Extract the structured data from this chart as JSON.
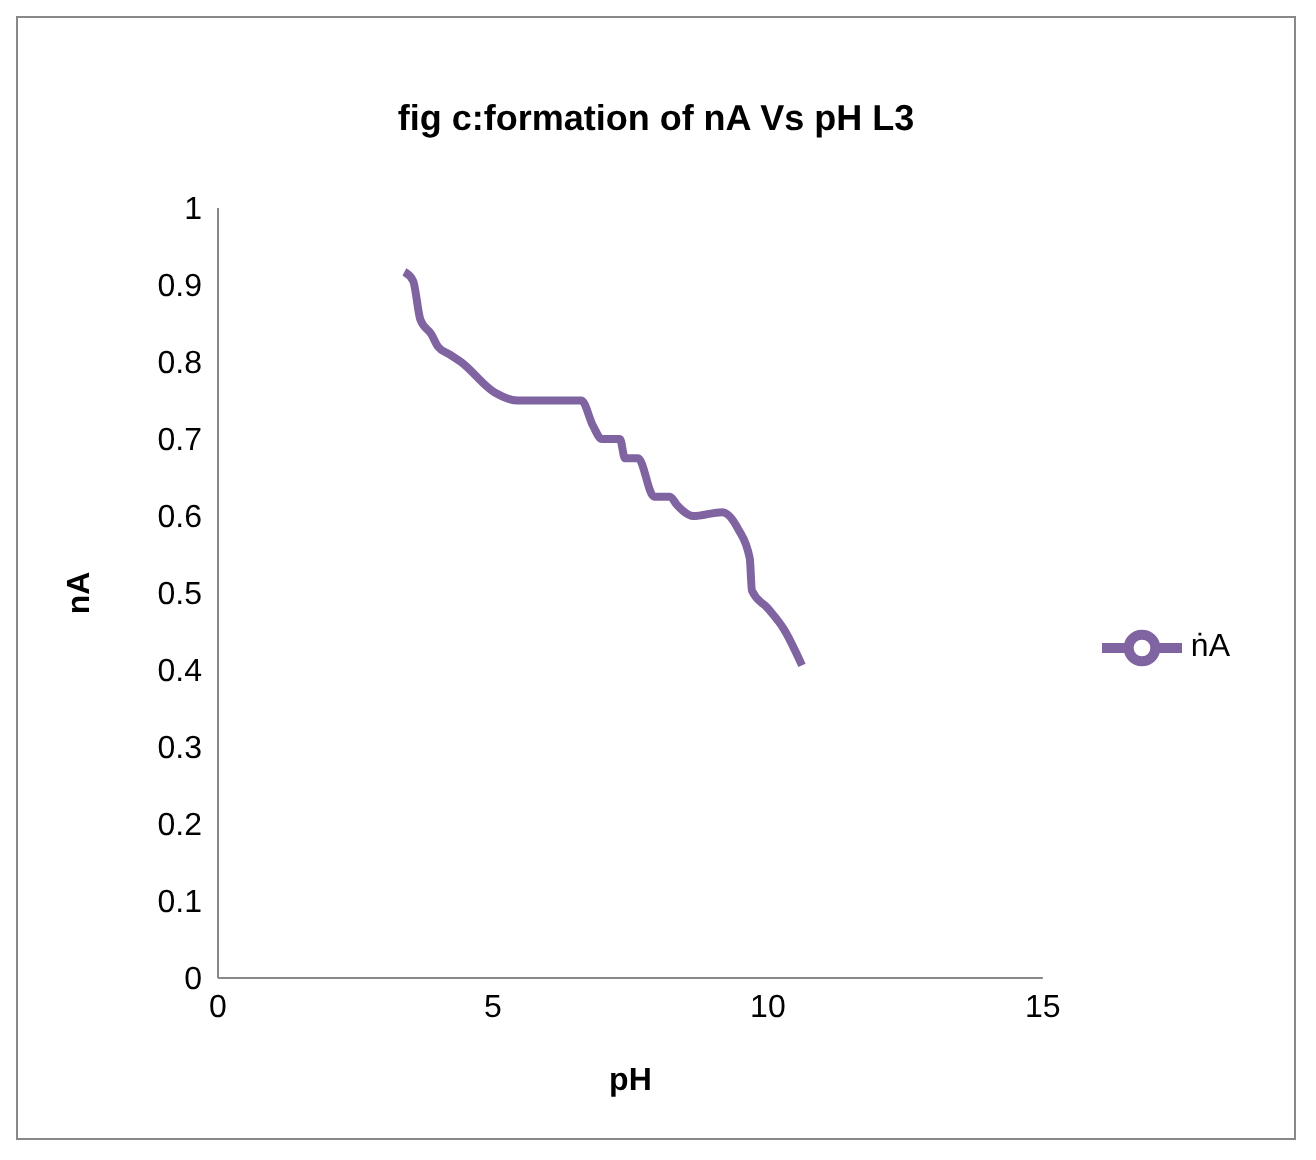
{
  "chart_data": {
    "type": "line",
    "title": "fig c:formation of nA Vs pH L3",
    "xlabel": "pH",
    "ylabel": "nA",
    "xlim": [
      0,
      15
    ],
    "xticks": [
      0,
      5,
      10,
      15
    ],
    "ylim": [
      0,
      1
    ],
    "yticks": [
      0,
      0.1,
      0.2,
      0.3,
      0.4,
      0.5,
      0.6,
      0.7,
      0.8,
      0.9,
      1
    ],
    "grid": false,
    "legend": "right",
    "marker": "none",
    "line_style": "solid",
    "series": [
      {
        "name": "ṅA",
        "color": "#8064a2",
        "x": [
          3.39,
          3.55,
          3.68,
          3.88,
          4.0,
          4.21,
          4.42,
          5.04,
          5.45,
          6.16,
          6.61,
          6.82,
          6.98,
          7.31,
          7.4,
          7.64,
          7.93,
          8.22,
          8.35,
          8.64,
          9.17,
          9.46,
          9.67,
          9.71,
          10.0,
          10.29,
          10.62
        ],
        "values": [
          0.917,
          0.905,
          0.855,
          0.836,
          0.82,
          0.81,
          0.8,
          0.76,
          0.75,
          0.75,
          0.75,
          0.717,
          0.7,
          0.7,
          0.675,
          0.675,
          0.625,
          0.625,
          0.614,
          0.6,
          0.605,
          0.583,
          0.545,
          0.503,
          0.48,
          0.453,
          0.406
        ]
      }
    ]
  }
}
